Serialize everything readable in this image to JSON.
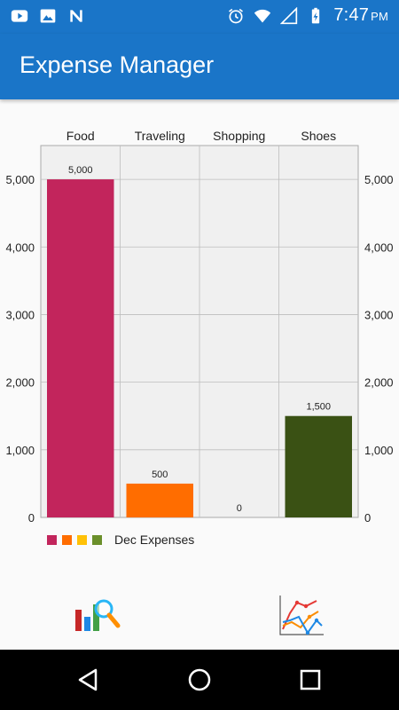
{
  "status_bar": {
    "time": "7:47",
    "ampm": "PM",
    "left_icons": [
      "youtube-icon",
      "image-icon",
      "n-app-icon"
    ],
    "right_icons": [
      "alarm-icon",
      "wifi-icon",
      "signal-icon",
      "battery-charging-icon"
    ]
  },
  "app_bar": {
    "title": "Expense Manager",
    "color": "#1a75c8"
  },
  "chart_data": {
    "type": "bar",
    "categories": [
      "Food",
      "Traveling",
      "Shopping",
      "Shoes"
    ],
    "values": [
      5000,
      500,
      0,
      1500
    ],
    "value_labels": [
      "5,000",
      "500",
      "0",
      "1,500"
    ],
    "colors": [
      "#c2255c",
      "#ff6d00",
      "#ffc107",
      "#3a5114"
    ],
    "ylim": [
      0,
      5500
    ],
    "yticks": [
      0,
      1000,
      2000,
      3000,
      4000,
      5000
    ],
    "ytick_labels": [
      "0",
      "1,000",
      "2,000",
      "3,000",
      "4,000",
      "5,000"
    ],
    "grid": true,
    "axes_both_sides": true,
    "legend": {
      "position": "bottom-left",
      "label": "Dec Expenses",
      "swatches": [
        "#c2255c",
        "#ff6d00",
        "#ffc107",
        "#6a8f2a"
      ]
    }
  },
  "bottom_actions": [
    {
      "icon": "bar-chart-search-icon"
    },
    {
      "icon": "line-chart-icon"
    }
  ],
  "nav_bar": {
    "buttons": [
      "back-icon",
      "home-icon",
      "recents-icon"
    ]
  }
}
